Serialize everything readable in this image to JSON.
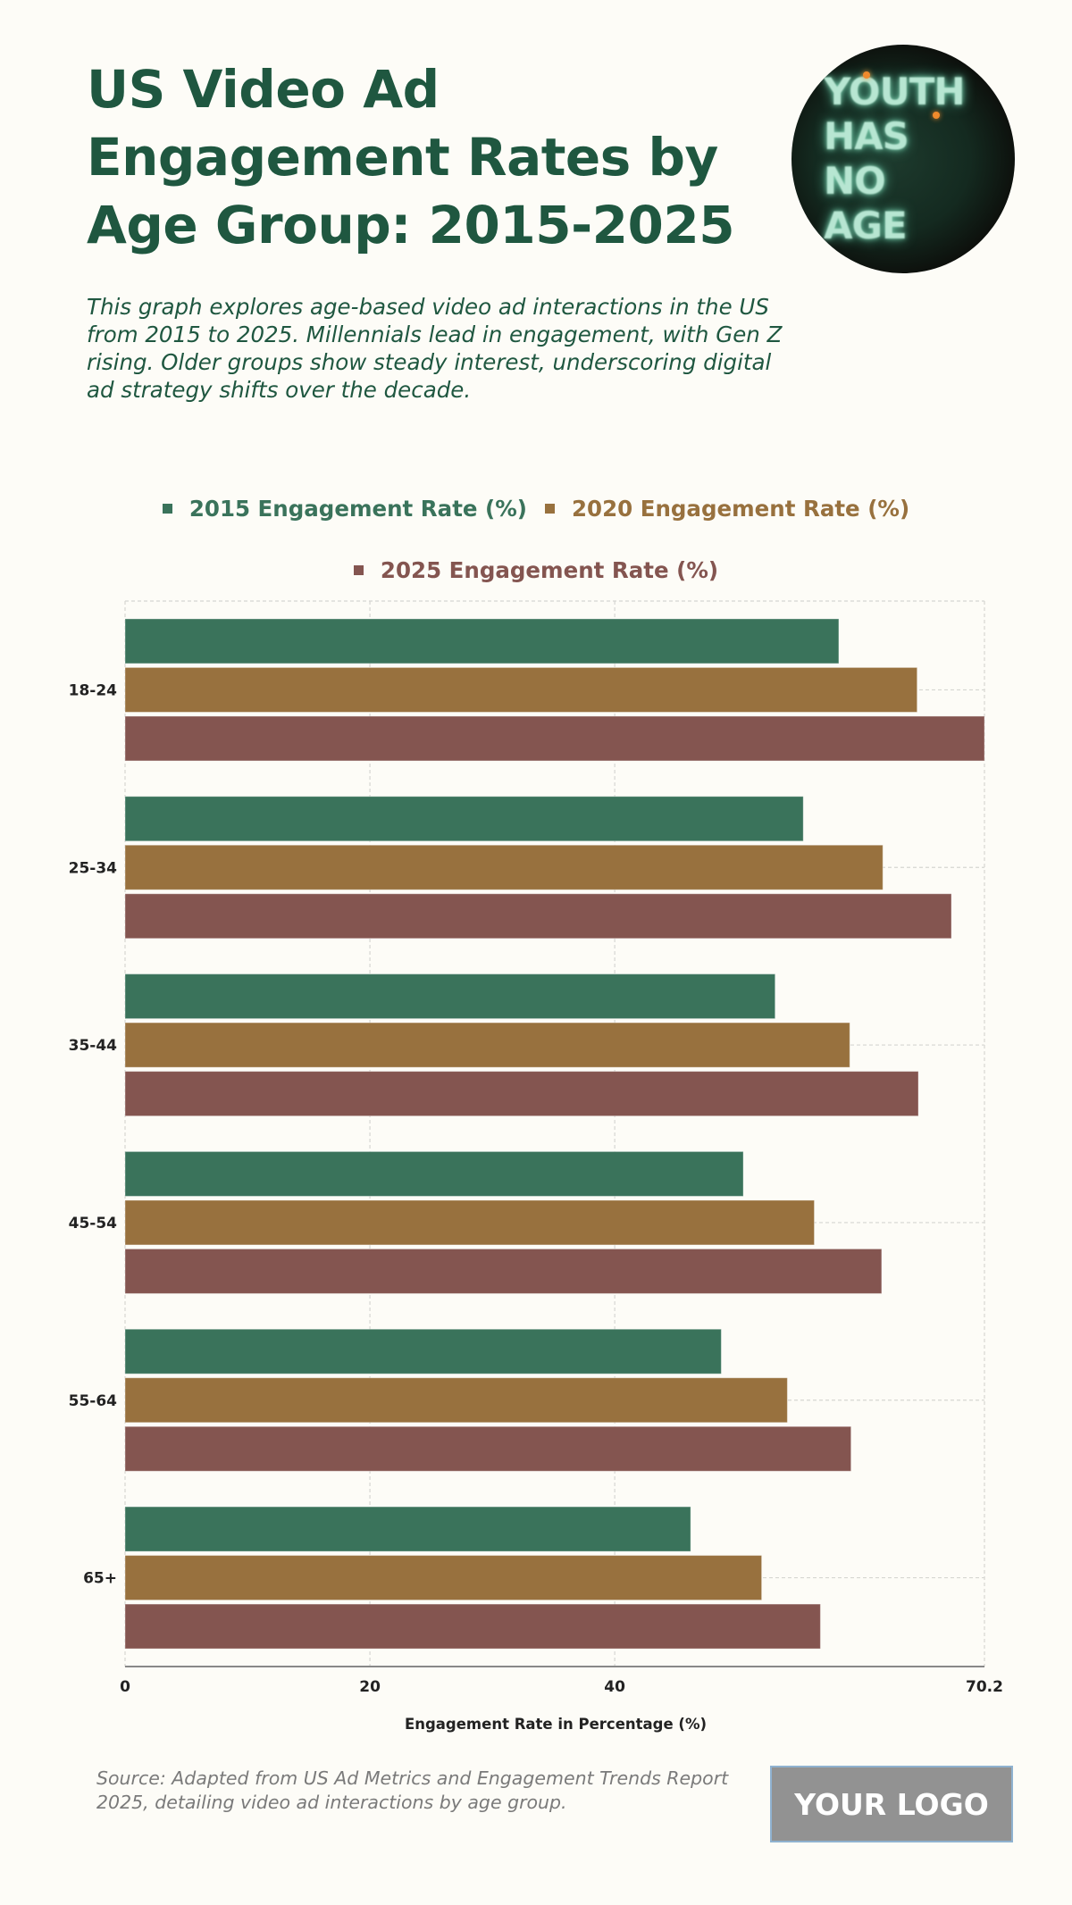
{
  "header": {
    "title": "US Video Ad Engagement Rates by Age Group: 2015-2025",
    "subtitle": "This graph explores age-based video ad interactions in the US from 2015 to 2025. Millennials lead in engagement, with Gen Z rising. Older groups show steady interest, underscoring digital ad strategy shifts over the decade.",
    "hero_image": {
      "description": "neon sign photo",
      "sign_lines": [
        "YOUTH",
        "HAS",
        "NO",
        "AGE"
      ]
    }
  },
  "colors": {
    "title": "#1f5740",
    "series_2015": "#3a735b",
    "series_2020": "#98713e",
    "series_2025": "#845550",
    "background": "#fdfcf7"
  },
  "chart_data": {
    "type": "bar",
    "orientation": "horizontal",
    "title": "US Video Ad Engagement Rates by Age Group: 2015-2025",
    "categories": [
      "18-24",
      "25-34",
      "35-44",
      "45-54",
      "55-64",
      "65+"
    ],
    "series": [
      {
        "name": "2015 Engagement Rate (%)",
        "color": "#3a735b",
        "values": [
          58.3,
          55.4,
          53.1,
          50.5,
          48.7,
          46.2
        ]
      },
      {
        "name": "2020 Engagement Rate (%)",
        "color": "#98713e",
        "values": [
          64.7,
          61.9,
          59.2,
          56.3,
          54.1,
          52.0
        ]
      },
      {
        "name": "2025 Engagement Rate (%)",
        "color": "#845550",
        "values": [
          70.2,
          67.5,
          64.8,
          61.8,
          59.3,
          56.8
        ]
      }
    ],
    "xlabel": "Engagement Rate in Percentage (%)",
    "ylabel": "",
    "xlim": [
      0,
      70.2
    ],
    "xticks": [
      0,
      20,
      40,
      70.2
    ],
    "xtick_labels": [
      "0",
      "20",
      "40",
      "70.2"
    ],
    "grid": true,
    "legend_position": "top-center"
  },
  "footer": {
    "source": "Source: Adapted from US Ad Metrics and Engagement Trends Report 2025, detailing video ad interactions by age group.",
    "logo_text": "YOUR LOGO"
  }
}
